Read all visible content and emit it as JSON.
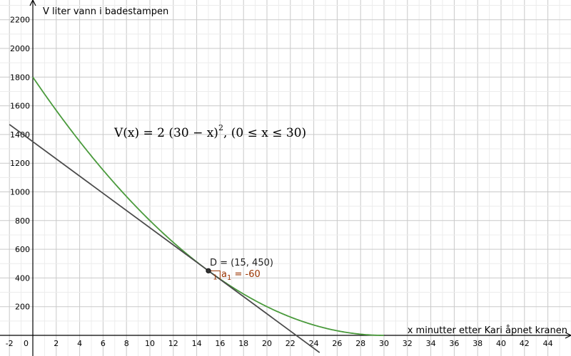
{
  "chart_data": {
    "type": "line",
    "xlabel": "x minutter etter Kari åpnet kranen",
    "ylabel": "V liter vann i badestampen",
    "xlim": [
      -2,
      46
    ],
    "ylim": [
      -20,
      2280
    ],
    "x_ticks": [
      -2,
      0,
      2,
      4,
      6,
      8,
      10,
      12,
      14,
      16,
      18,
      20,
      22,
      24,
      26,
      28,
      30,
      32,
      34,
      36,
      38,
      40,
      42,
      44
    ],
    "y_ticks": [
      200,
      400,
      600,
      800,
      1000,
      1200,
      1400,
      1600,
      1800,
      2000,
      2200
    ],
    "origin_label": "0",
    "grid": true,
    "formula": {
      "main": "V(x) = 2 (30 − x)",
      "exponent": "2",
      "domain": ",    (0 ≤ x ≤ 30)"
    },
    "series": [
      {
        "kind": "curve",
        "function": "2*(30-x)^2",
        "domain": [
          0,
          30
        ],
        "color": "#4a9a3c"
      },
      {
        "kind": "tangent",
        "slope": -60,
        "intercept": 1350,
        "color": "#4a4a4a"
      }
    ],
    "point": {
      "label": "D = (15, 450)",
      "x": 15,
      "y": 450,
      "color": "#333333"
    },
    "slope_triangle": {
      "label_base": "a",
      "label_sub": "1",
      "label_value": " = -60",
      "step": "1",
      "color": "#993300"
    }
  }
}
